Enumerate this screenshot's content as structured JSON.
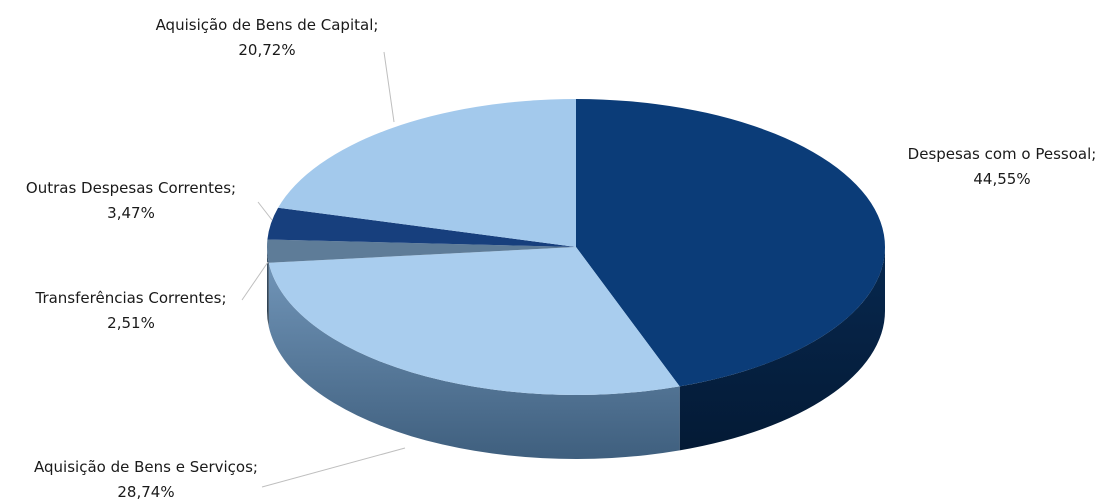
{
  "chart_data": {
    "type": "pie",
    "title": "",
    "slices": [
      {
        "name": "Despesas com o Pessoal;",
        "value": 44.55,
        "value_label": "44,55%",
        "color": "#0b3c78"
      },
      {
        "name": "Aquisição de Bens e Serviços;",
        "value": 28.74,
        "value_label": "28,74%",
        "color": "#a9cdee"
      },
      {
        "name": "Transferências Correntes;",
        "value": 2.51,
        "value_label": "2,51%",
        "color": "#5e7c98"
      },
      {
        "name": "Outras Despesas Correntes;",
        "value": 3.47,
        "value_label": "3,47%",
        "color": "#173f7d"
      },
      {
        "name": "Aquisição de Bens de Capital;",
        "value": 20.72,
        "value_label": "20,72%",
        "color": "#a3c9ec"
      }
    ],
    "style": "3d"
  }
}
